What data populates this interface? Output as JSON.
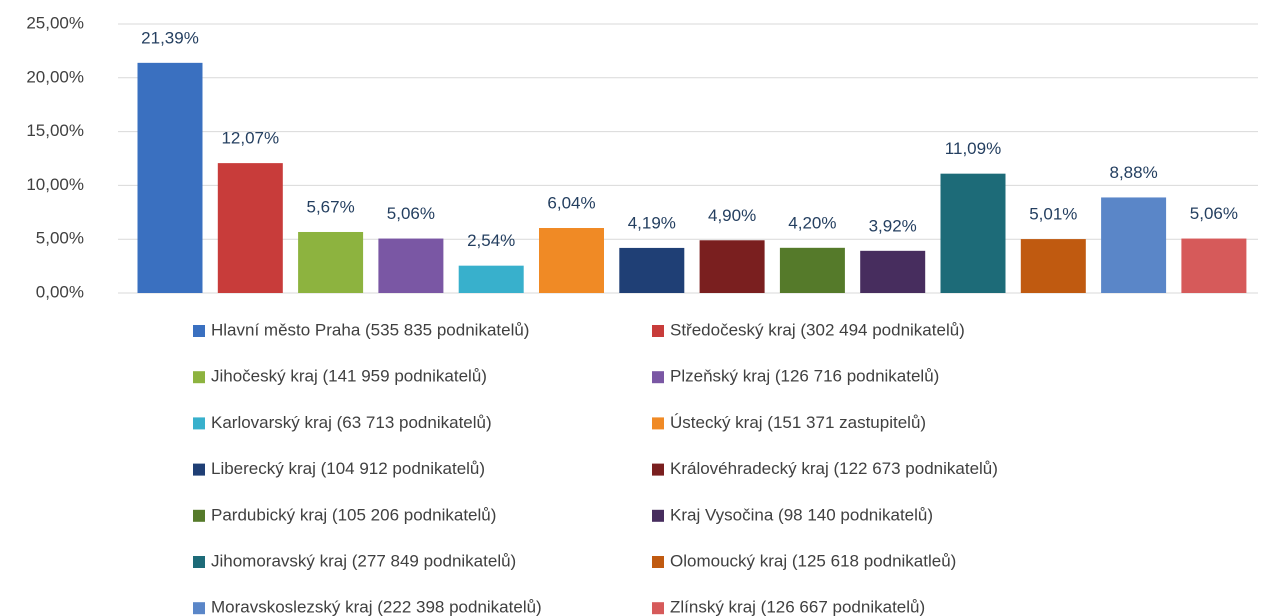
{
  "chart_data": {
    "type": "bar",
    "categories": [
      null
    ],
    "series": [
      {
        "name": "Hlavní město Praha (535 835 podnikatelů)",
        "color": "#3a70c0",
        "values": [
          21.39
        ],
        "value_labels": [
          "21,39%"
        ]
      },
      {
        "name": "Středočeský kraj (302 494 podnikatelů)",
        "color": "#c83c3a",
        "values": [
          12.07
        ],
        "value_labels": [
          "12,07%"
        ]
      },
      {
        "name": "Jihočeský kraj (141 959 podnikatelů)",
        "color": "#8db33f",
        "values": [
          5.67
        ],
        "value_labels": [
          "5,67%"
        ]
      },
      {
        "name": "Plzeňský kraj (126 716 podnikatelů)",
        "color": "#7a57a4",
        "values": [
          5.06
        ],
        "value_labels": [
          "5,06%"
        ]
      },
      {
        "name": "Karlovarský kraj (63 713 podnikatelů)",
        "color": "#38b0cc",
        "values": [
          2.54
        ],
        "value_labels": [
          "2,54%"
        ]
      },
      {
        "name": "Ústecký kraj (151 371 zastupitelů)",
        "color": "#f08a25",
        "values": [
          6.04
        ],
        "value_labels": [
          "6,04%"
        ]
      },
      {
        "name": "Liberecký kraj (104 912 podnikatelů)",
        "color": "#1f3f75",
        "values": [
          4.19
        ],
        "value_labels": [
          "4,19%"
        ]
      },
      {
        "name": "Královéhradecký kraj (122 673 podnikatelů)",
        "color": "#7a1f1f",
        "values": [
          4.9
        ],
        "value_labels": [
          "4,90%"
        ]
      },
      {
        "name": "Pardubický kraj (105 206 podnikatelů)",
        "color": "#557a2a",
        "values": [
          4.2
        ],
        "value_labels": [
          "4,20%"
        ]
      },
      {
        "name": "Kraj Vysočina (98 140 podnikatelů)",
        "color": "#472d5e",
        "values": [
          3.92
        ],
        "value_labels": [
          "3,92%"
        ]
      },
      {
        "name": "Jihomoravský kraj (277 849 podnikatelů)",
        "color": "#1d6b78",
        "values": [
          11.09
        ],
        "value_labels": [
          "11,09%"
        ]
      },
      {
        "name": "Olomoucký kraj (125 618 podnikatleů)",
        "color": "#c05a10",
        "values": [
          5.01
        ],
        "value_labels": [
          "5,01%"
        ]
      },
      {
        "name": "Moravskoslezský kraj (222 398 podnikatelů)",
        "color": "#5a86c8",
        "values": [
          8.88
        ],
        "value_labels": [
          "8,88%"
        ]
      },
      {
        "name": "Zlínský kraj (126 667 podnikatelů)",
        "color": "#d65a5a",
        "values": [
          5.06
        ],
        "value_labels": [
          "5,06%"
        ]
      }
    ],
    "ylim": [
      0,
      25
    ],
    "yticks": [
      {
        "value": 0,
        "label": "0,00%"
      },
      {
        "value": 5,
        "label": "5,00%"
      },
      {
        "value": 10,
        "label": "10,00%"
      },
      {
        "value": 15,
        "label": "15,00%"
      },
      {
        "value": 20,
        "label": "20,00%"
      },
      {
        "value": 25,
        "label": "25,00%"
      }
    ],
    "grid": true,
    "legend": "bottom"
  }
}
